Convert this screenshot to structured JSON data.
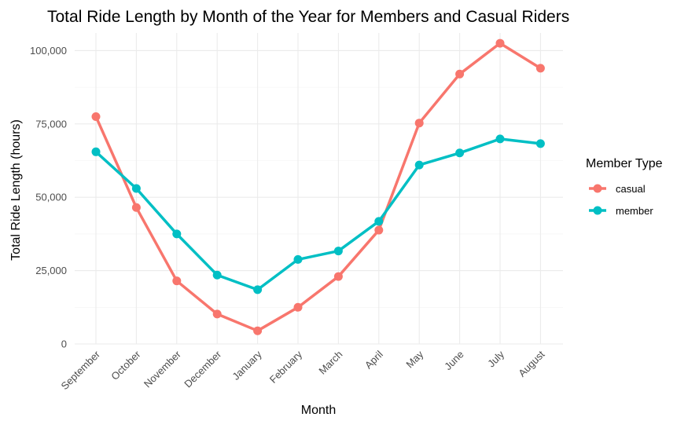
{
  "chart_data": {
    "type": "line",
    "title": "Total Ride Length by Month of the Year for Members and Casual Riders",
    "xlabel": "Month",
    "ylabel": "Total Ride Length (hours)",
    "categories": [
      "September",
      "October",
      "November",
      "December",
      "January",
      "February",
      "March",
      "April",
      "May",
      "June",
      "July",
      "August"
    ],
    "series": [
      {
        "name": "casual",
        "color": "#F8766D",
        "values": [
          77500,
          46500,
          21500,
          10200,
          4500,
          12500,
          23000,
          38800,
          75300,
          92000,
          102500,
          94000
        ]
      },
      {
        "name": "member",
        "color": "#00BFC4",
        "values": [
          65500,
          53000,
          37500,
          23500,
          18500,
          28800,
          31700,
          41800,
          61000,
          65100,
          69900,
          68300
        ]
      }
    ],
    "ylim": [
      0,
      106000
    ],
    "yticks": [
      0,
      25000,
      50000,
      75000,
      100000
    ],
    "ytick_labels": [
      "0",
      "25,000",
      "50,000",
      "75,000",
      "100,000"
    ],
    "grid": true,
    "legend": {
      "title": "Member Type",
      "position": "right"
    }
  }
}
